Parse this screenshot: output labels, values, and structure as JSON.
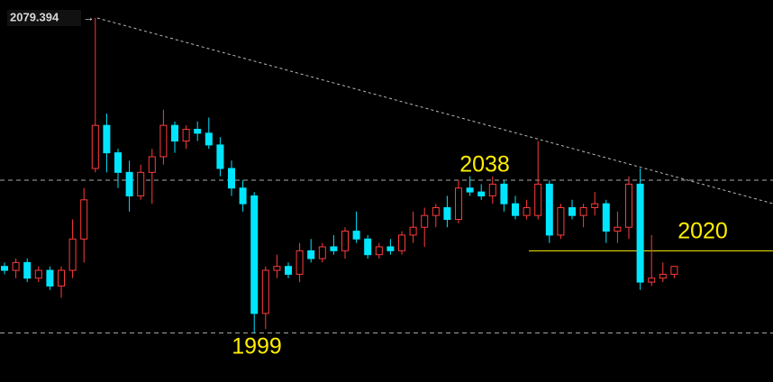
{
  "chart_data": {
    "type": "candlestick",
    "ylim": [
      1986.5,
      2084
    ],
    "up_color": "#ff3b3b",
    "down_color": "#00e5ff",
    "open": [
      2016,
      2015,
      2017,
      2013,
      2015,
      2011,
      2015,
      2023,
      2041,
      2052,
      2045,
      2040,
      2034,
      2040,
      2044,
      2052,
      2048,
      2051,
      2050,
      2047,
      2041,
      2036,
      2034,
      2004,
      2015,
      2016,
      2014,
      2020,
      2018,
      2021,
      2020,
      2025,
      2023,
      2019,
      2021,
      2020,
      2024,
      2026,
      2029,
      2031,
      2028,
      2036,
      2035,
      2034,
      2037,
      2032,
      2029,
      2029,
      2037,
      2024,
      2031,
      2029,
      2031,
      2032,
      2025,
      2026,
      2037,
      2012,
      2013,
      2014
    ],
    "high": [
      2017,
      2018,
      2018,
      2016,
      2016,
      2016,
      2028,
      2036,
      2079.394,
      2055,
      2046,
      2043,
      2042,
      2046,
      2056,
      2053,
      2052,
      2053,
      2054,
      2049,
      2043,
      2038,
      2035,
      2016,
      2019,
      2017,
      2022,
      2023,
      2022,
      2024,
      2026,
      2030,
      2024,
      2022,
      2023,
      2025,
      2030,
      2031,
      2032,
      2034,
      2038,
      2039,
      2037,
      2039,
      2038,
      2034,
      2033,
      2048,
      2038,
      2032,
      2033,
      2032,
      2035,
      2033,
      2030,
      2039,
      2041,
      2024,
      2017,
      2016
    ],
    "low": [
      2014,
      2013,
      2012,
      2012,
      2010,
      2008,
      2013,
      2017,
      2040,
      2040,
      2036,
      2030,
      2033,
      2032,
      2042,
      2045,
      2046,
      2048,
      2046,
      2039,
      2034,
      2030,
      1999,
      2000,
      2013,
      2013,
      2012,
      2017,
      2017,
      2019,
      2018,
      2022,
      2018,
      2018,
      2019,
      2019,
      2022,
      2021,
      2026,
      2026,
      2027,
      2034,
      2033,
      2032,
      2030,
      2028,
      2028,
      2028,
      2022,
      2023,
      2028,
      2026,
      2029,
      2022,
      2022,
      2023,
      2010,
      2011,
      2012,
      2013
    ],
    "close": [
      2015,
      2017,
      2013,
      2015,
      2011,
      2015,
      2023,
      2033,
      2052,
      2045,
      2040,
      2034,
      2040,
      2044,
      2052,
      2048,
      2051,
      2050,
      2047,
      2041,
      2036,
      2032,
      2004,
      2015,
      2016,
      2014,
      2020,
      2018,
      2021,
      2020,
      2025,
      2023,
      2019,
      2021,
      2020,
      2024,
      2026,
      2029,
      2031,
      2028,
      2036,
      2035,
      2034,
      2037,
      2032,
      2029,
      2031,
      2037,
      2024,
      2031,
      2029,
      2031,
      2032,
      2025,
      2026,
      2037,
      2012,
      2013,
      2014,
      2016
    ],
    "high_marker": 2079.394,
    "levels": [
      2038,
      1999,
      2020
    ],
    "level_styles": [
      "dashed",
      "dashed",
      "solid"
    ]
  }
}
